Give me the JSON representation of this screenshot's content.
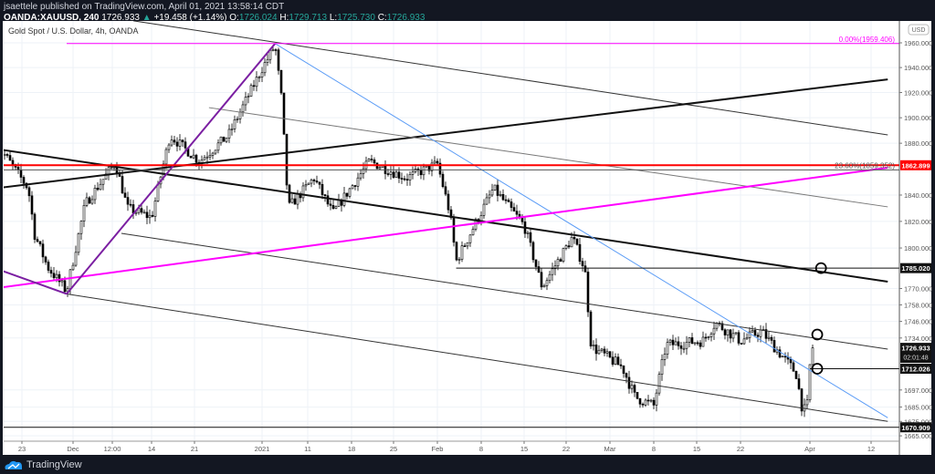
{
  "header": {
    "publisher": "jsaettele published on TradingView.com, April 01, 2021 13:58:14 CDT",
    "symbol": "OANDA:XAUUSD, 240",
    "last": "1726.933",
    "change": "+19.458 (+1.14%)",
    "open_label": "O:",
    "open": "1726.024",
    "high_label": "H:",
    "high": "1729.713",
    "low_label": "L:",
    "low": "1725.730",
    "close_label": "C:",
    "close": "1726.933"
  },
  "footer": {
    "brand": "TradingView"
  },
  "colors": {
    "background": "#131722",
    "grid": "#eef2f7",
    "red_level": "#ff0000",
    "magenta": "#ff00ff",
    "fib_zero": "#ff00ff",
    "blue_line": "#5b9cf6",
    "purple": "#7b1fa2",
    "up_change": "#26a69a"
  },
  "chart_data": {
    "type": "candlestick",
    "title": "Gold Spot / U.S. Dollar, 4h, OANDA",
    "currency": "USD",
    "y_scale": "log",
    "ylim": [
      1665,
      1960
    ],
    "y_ticks": [
      1960,
      1940,
      1920,
      1900,
      1880,
      1840,
      1820,
      1800,
      1770,
      1758,
      1746,
      1734,
      1697,
      1685,
      1675,
      1665
    ],
    "x_ticks": [
      {
        "label": "23",
        "date": "2020-11-23"
      },
      {
        "label": "Dec",
        "date": "2020-12-01"
      },
      {
        "label": "12:00",
        "date": "2020-12-07T12:00"
      },
      {
        "label": "14",
        "date": "2020-12-14"
      },
      {
        "label": "21",
        "date": "2020-12-21"
      },
      {
        "label": "2021",
        "date": "2021-01-04"
      },
      {
        "label": "11",
        "date": "2021-01-11"
      },
      {
        "label": "18",
        "date": "2021-01-18"
      },
      {
        "label": "25",
        "date": "2021-01-25"
      },
      {
        "label": "Feb",
        "date": "2021-02-01"
      },
      {
        "label": "8",
        "date": "2021-02-08"
      },
      {
        "label": "15",
        "date": "2021-02-15"
      },
      {
        "label": "22",
        "date": "2021-02-22"
      },
      {
        "label": "Mar",
        "date": "2021-03-01"
      },
      {
        "label": "8",
        "date": "2021-03-08"
      },
      {
        "label": "15",
        "date": "2021-03-15"
      },
      {
        "label": "22",
        "date": "2021-03-22"
      },
      {
        "label": "Apr",
        "date": "2021-04-01"
      },
      {
        "label": "12",
        "date": "2021-04-12"
      }
    ],
    "price_path": [
      [
        "2020-11-19",
        1864
      ],
      [
        "2020-11-20",
        1873
      ],
      [
        "2020-11-24",
        1845
      ],
      [
        "2020-11-25",
        1810
      ],
      [
        "2020-11-27",
        1786
      ],
      [
        "2020-11-30",
        1768
      ],
      [
        "2020-12-03",
        1833
      ],
      [
        "2020-12-08",
        1865
      ],
      [
        "2020-12-10",
        1830
      ],
      [
        "2020-12-14",
        1823
      ],
      [
        "2020-12-17",
        1886
      ],
      [
        "2020-12-22",
        1866
      ],
      [
        "2020-12-28",
        1886
      ],
      [
        "2021-01-04",
        1939
      ],
      [
        "2021-01-06",
        1958
      ],
      [
        "2021-01-07",
        1914
      ],
      [
        "2021-01-08",
        1830
      ],
      [
        "2021-01-12",
        1853
      ],
      [
        "2021-01-15",
        1826
      ],
      [
        "2021-01-21",
        1866
      ],
      [
        "2021-01-27",
        1853
      ],
      [
        "2021-02-01",
        1864
      ],
      [
        "2021-02-03",
        1826
      ],
      [
        "2021-02-04",
        1790
      ],
      [
        "2021-02-10",
        1845
      ],
      [
        "2021-02-15",
        1817
      ],
      [
        "2021-02-18",
        1771
      ],
      [
        "2021-02-23",
        1808
      ],
      [
        "2021-02-25",
        1784
      ],
      [
        "2021-02-26",
        1728
      ],
      [
        "2021-03-03",
        1713
      ],
      [
        "2021-03-05",
        1692
      ],
      [
        "2021-03-08",
        1686
      ],
      [
        "2021-03-10",
        1729
      ],
      [
        "2021-03-16",
        1732
      ],
      [
        "2021-03-18",
        1745
      ],
      [
        "2021-03-22",
        1732
      ],
      [
        "2021-03-25",
        1739
      ],
      [
        "2021-03-30",
        1709
      ],
      [
        "2021-03-31",
        1681
      ],
      [
        "2021-03-31T16:00",
        1687
      ],
      [
        "2021-04-01",
        1714
      ],
      [
        "2021-04-01T12:00",
        1726.933
      ]
    ],
    "drawings": {
      "lines": [
        {
          "name": "upper-channel-line",
          "color": "#333333",
          "width": 1,
          "p1": [
            "2020-12-11",
            1978
          ],
          "p2": [
            "2021-04-15",
            1886.5
          ]
        },
        {
          "name": "rising-trendline",
          "color": "#111111",
          "width": 2,
          "p1": [
            "2020-11-17",
            1844
          ],
          "p2": [
            "2021-04-15",
            1930.5
          ]
        },
        {
          "name": "falling-trendline",
          "color": "#111111",
          "width": 2,
          "p1": [
            "2020-11-17",
            1877
          ],
          "p2": [
            "2021-04-15",
            1775
          ]
        },
        {
          "name": "gray-parallel-line",
          "color": "#777777",
          "width": 1,
          "p1": [
            "2020-12-24",
            1908
          ],
          "p2": [
            "2021-04-15",
            1831
          ]
        },
        {
          "name": "middle-channel-line",
          "color": "#333333",
          "width": 1,
          "p1": [
            "2020-12-09",
            1811
          ],
          "p2": [
            "2021-04-15",
            1726
          ]
        },
        {
          "name": "lower-channel-line",
          "color": "#333333",
          "width": 1,
          "p1": [
            "2020-11-30",
            1766
          ],
          "p2": [
            "2021-04-15",
            1675
          ]
        },
        {
          "name": "blue-trendline",
          "color": "#5b9cf6",
          "width": 1,
          "p1": [
            "2021-01-06",
            1959.4
          ],
          "p2": [
            "2021-04-15",
            1677.5
          ]
        },
        {
          "name": "magenta-trendline",
          "color": "#ff00ff",
          "width": 2,
          "p1": [
            "2020-11-17",
            1769
          ],
          "p2": [
            "2021-04-15",
            1861
          ]
        },
        {
          "name": "purple-leg-1",
          "color": "#7b1fa2",
          "width": 2,
          "p1": [
            "2020-11-17",
            1788
          ],
          "p2": [
            "2020-11-30",
            1766
          ]
        },
        {
          "name": "purple-leg-2",
          "color": "#7b1fa2",
          "width": 2,
          "p1": [
            "2020-11-30",
            1766
          ],
          "p2": [
            "2021-01-06",
            1959.4
          ]
        }
      ],
      "horizontals": [
        {
          "name": "fib-0-level",
          "price": 1959.406,
          "from": "2020-11-30",
          "color": "#ff00ff",
          "label": "0.00%(1959.406)"
        },
        {
          "name": "fib-23.6-level",
          "price": 1859.352,
          "from": "2020-11-17",
          "color": "#555555",
          "label": "23.60%(1859.352)"
        },
        {
          "name": "red-level",
          "price": 1862.899,
          "from": "2020-11-17",
          "color": "#ff0000",
          "width": 2,
          "axis_label": "1862.899",
          "axis_bg": "#ff0000"
        },
        {
          "name": "level-1785",
          "price": 1785.02,
          "from": "2021-02-04",
          "color": "#111111",
          "axis_label": "1785.020",
          "axis_bg": "#131313"
        },
        {
          "name": "level-1712",
          "price": 1712.026,
          "from": "2021-04-01",
          "color": "#111111",
          "axis_label": "1712.026",
          "axis_bg": "#131313"
        },
        {
          "name": "level-1670",
          "price": 1670.909,
          "from": "2020-11-17",
          "color": "#111111",
          "axis_label": "1670.909",
          "axis_bg": "#131313"
        }
      ],
      "circles": [
        {
          "name": "target-circle-1785",
          "date": "2021-04-03",
          "price": 1785.02
        },
        {
          "name": "target-circle-1734",
          "date": "2021-04-01T12:00",
          "price": 1736.5
        },
        {
          "name": "target-circle-1712",
          "date": "2021-04-01T12:00",
          "price": 1712.026
        }
      ]
    },
    "last_price_label": {
      "price": "1726.933",
      "countdown": "02:01:48"
    }
  }
}
